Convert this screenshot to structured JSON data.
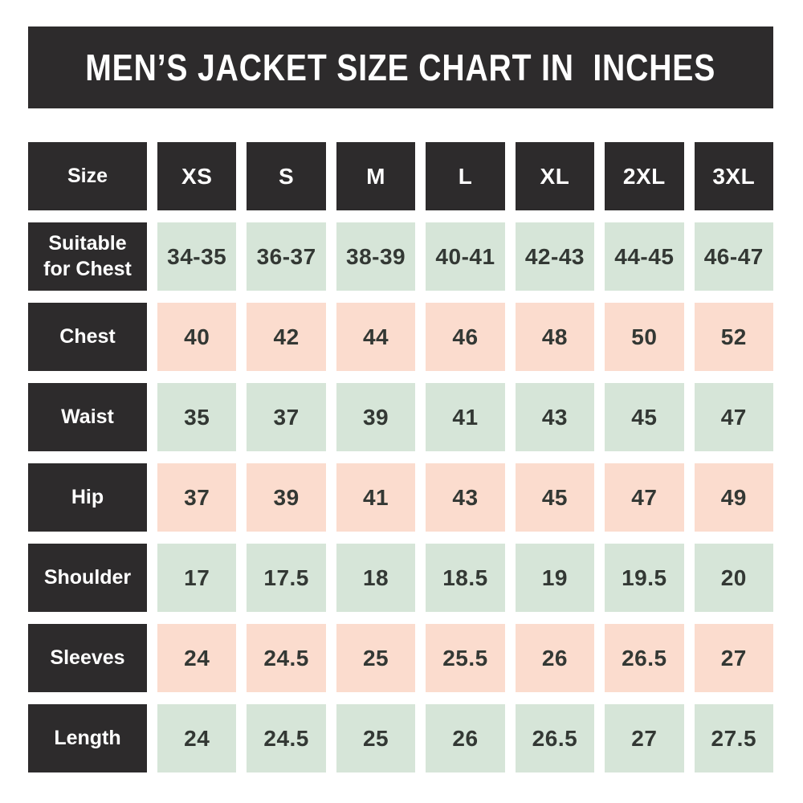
{
  "chart_data": {
    "type": "table",
    "title": "MEN’S JACKET SIZE CHART IN  INCHES",
    "header": {
      "label": "Size",
      "sizes": [
        "XS",
        "S",
        "M",
        "L",
        "XL",
        "2XL",
        "3XL"
      ]
    },
    "rows": [
      {
        "label": "Suitable for Chest",
        "tone": "green",
        "values": [
          "34-35",
          "36-37",
          "38-39",
          "40-41",
          "42-43",
          "44-45",
          "46-47"
        ]
      },
      {
        "label": "Chest",
        "tone": "pink",
        "values": [
          "40",
          "42",
          "44",
          "46",
          "48",
          "50",
          "52"
        ]
      },
      {
        "label": "Waist",
        "tone": "green",
        "values": [
          "35",
          "37",
          "39",
          "41",
          "43",
          "45",
          "47"
        ]
      },
      {
        "label": "Hip",
        "tone": "pink",
        "values": [
          "37",
          "39",
          "41",
          "43",
          "45",
          "47",
          "49"
        ]
      },
      {
        "label": "Shoulder",
        "tone": "green",
        "values": [
          "17",
          "17.5",
          "18",
          "18.5",
          "19",
          "19.5",
          "20"
        ]
      },
      {
        "label": "Sleeves",
        "tone": "pink",
        "values": [
          "24",
          "24.5",
          "25",
          "25.5",
          "26",
          "26.5",
          "27"
        ]
      },
      {
        "label": "Length",
        "tone": "green",
        "values": [
          "24",
          "24.5",
          "25",
          "26",
          "26.5",
          "27",
          "27.5"
        ]
      }
    ],
    "layout": {
      "legend": "none",
      "grid": "off",
      "unit": "inches"
    }
  },
  "colors": {
    "dark": "#2d2b2c",
    "green": "#d6e5d8",
    "pink": "#fbdcce",
    "page_bg": "#ffffff",
    "header_text": "#ffffff",
    "value_text": "#333834"
  }
}
